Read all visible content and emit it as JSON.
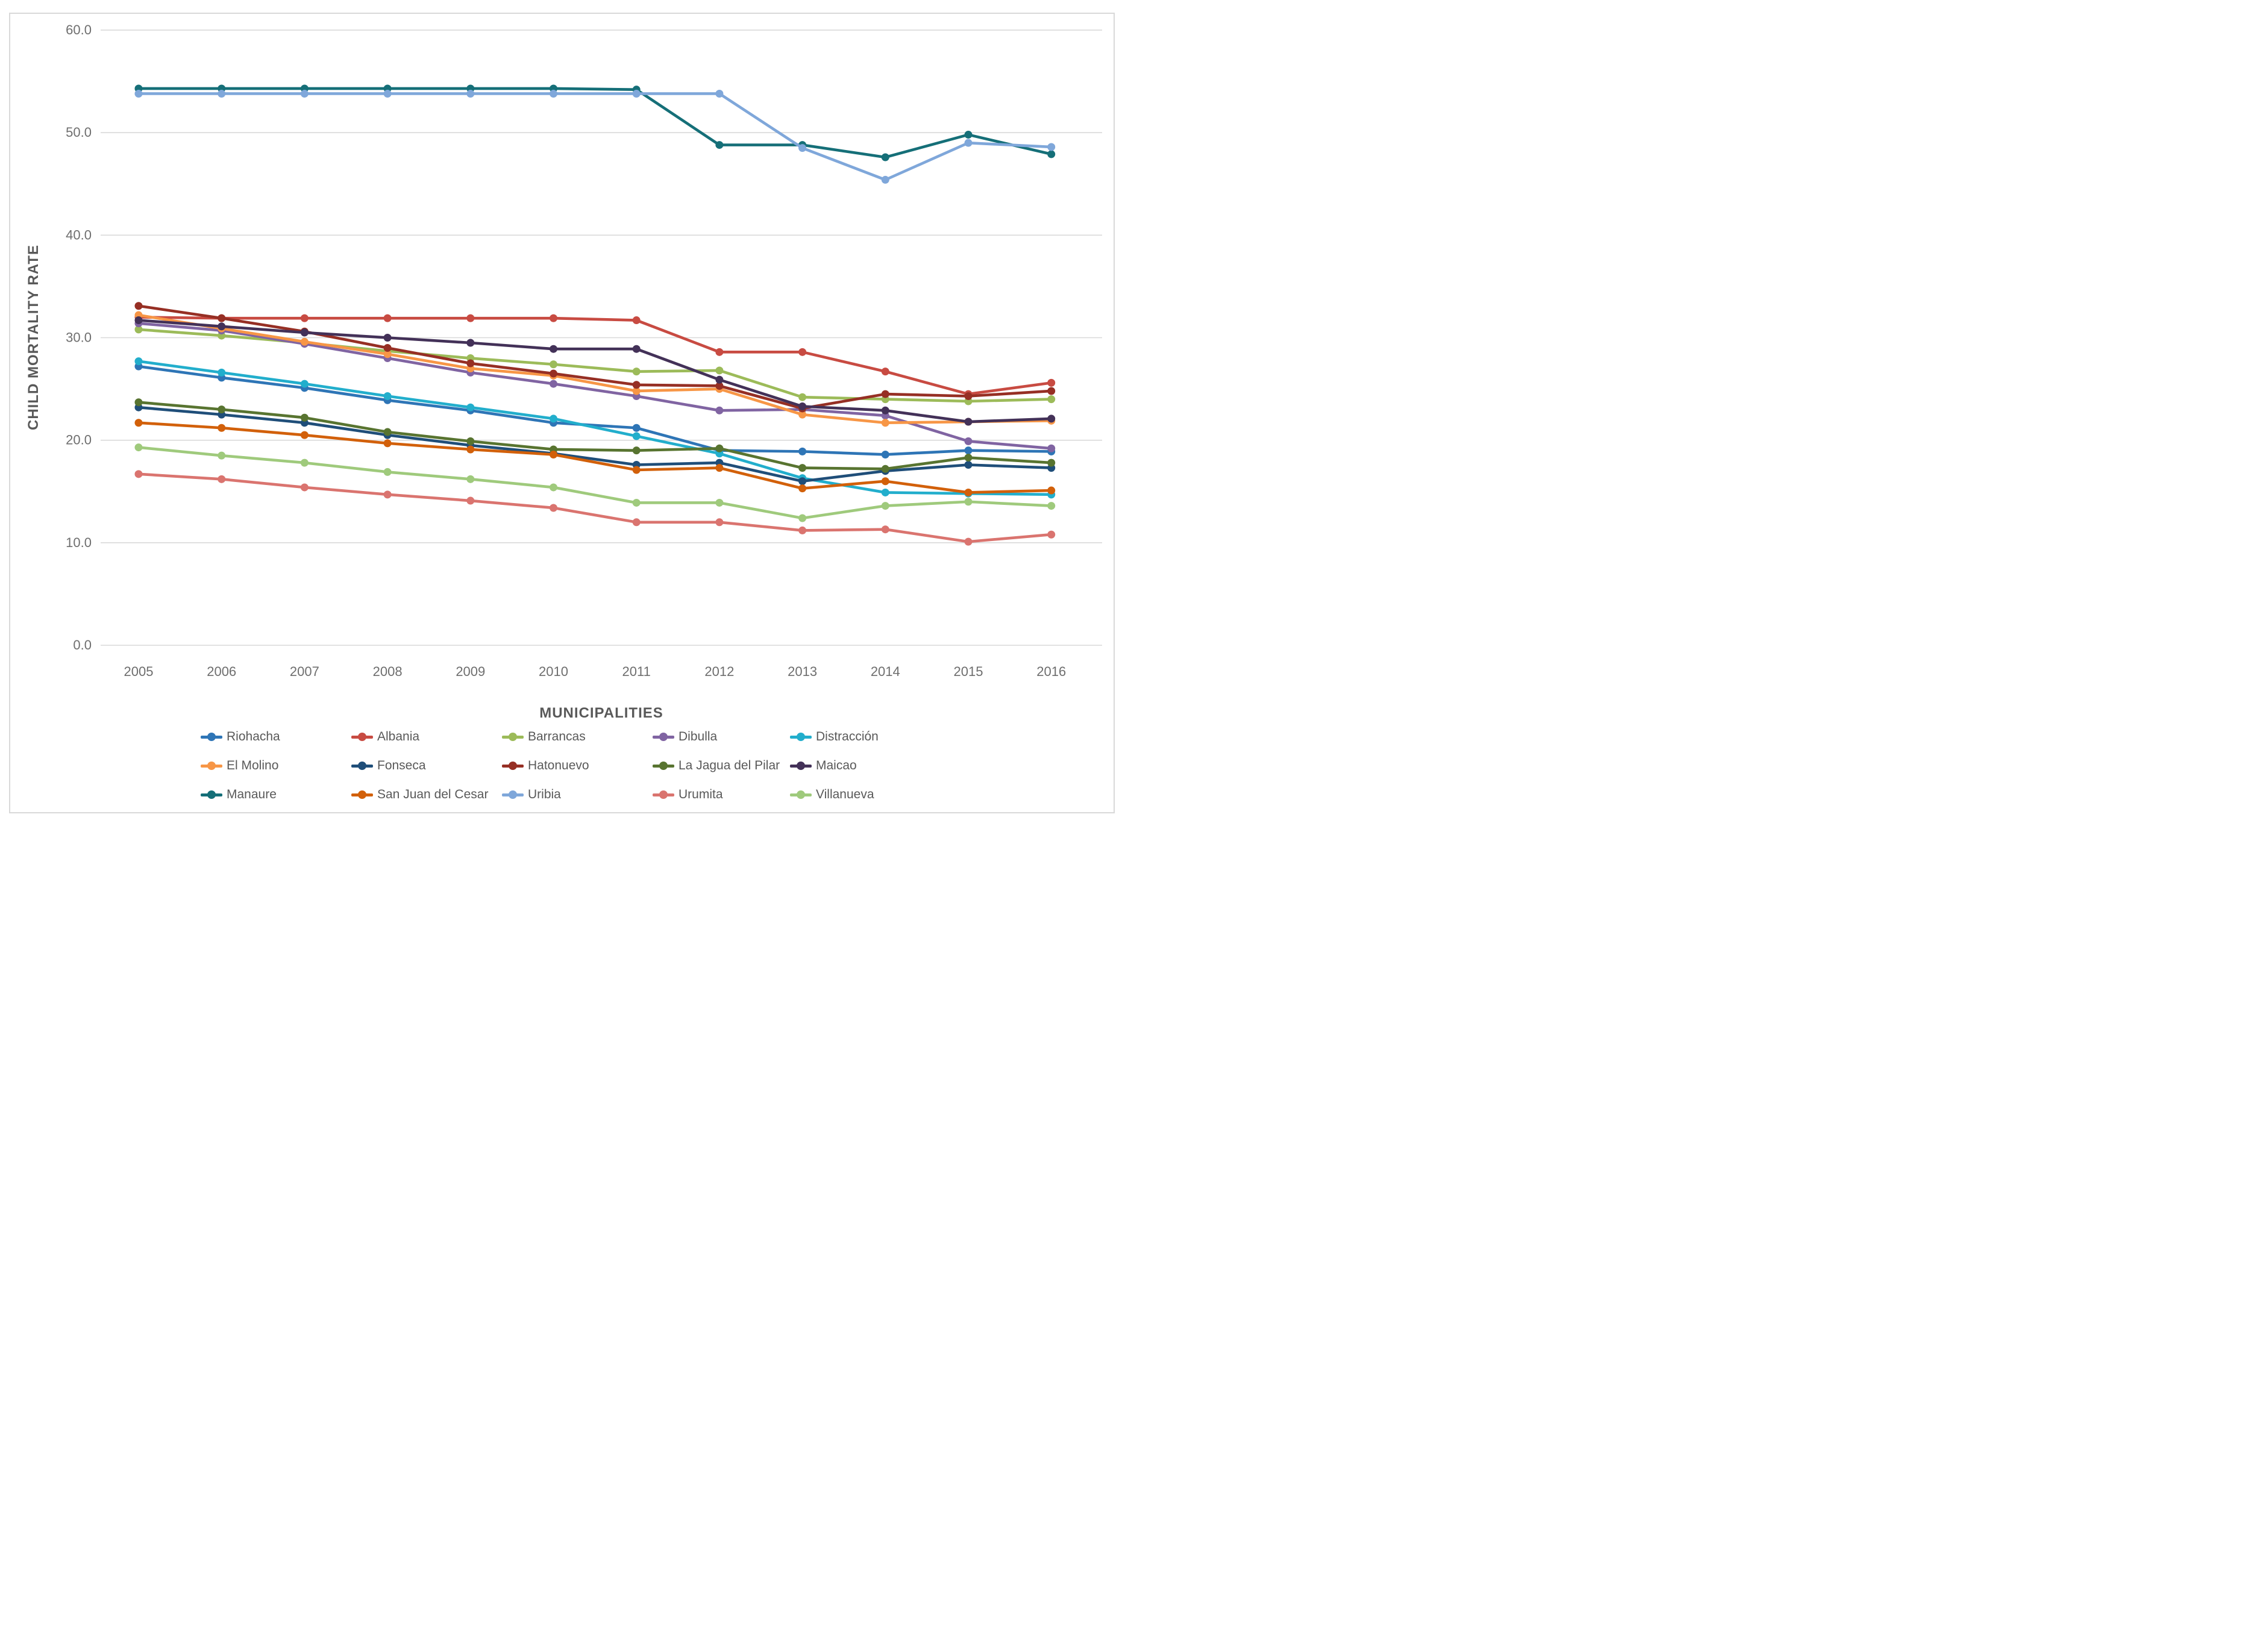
{
  "chart_data": {
    "type": "line",
    "title": "",
    "xlabel": "MUNICIPALITIES",
    "ylabel": "CHILD MORTALITY RATE",
    "categories": [
      "2005",
      "2006",
      "2007",
      "2008",
      "2009",
      "2010",
      "2011",
      "2012",
      "2013",
      "2014",
      "2015",
      "2016"
    ],
    "y_ticks": [
      "60.0",
      "50.0",
      "40.0",
      "30.0",
      "20.0",
      "10.0",
      "0.0"
    ],
    "ylim": [
      0,
      60
    ],
    "grid": "horizontal",
    "gridline_color": "#d9d9d9",
    "axis_text_color": "#6e6e6e",
    "title_text_color": "#595959",
    "legend_position": "bottom",
    "legend_columns": 5,
    "series": [
      {
        "name": "Riohacha",
        "color": "#2E75B6",
        "values": [
          27.2,
          26.1,
          25.1,
          23.9,
          22.9,
          21.7,
          21.2,
          19.0,
          18.9,
          18.6,
          19.0,
          18.9
        ]
      },
      {
        "name": "Albania",
        "color": "#C84B42",
        "values": [
          32.0,
          31.9,
          31.9,
          31.9,
          31.9,
          31.9,
          31.7,
          28.6,
          28.6,
          26.7,
          24.5,
          25.6
        ]
      },
      {
        "name": "Barrancas",
        "color": "#9CBB59",
        "values": [
          30.8,
          30.2,
          29.5,
          28.7,
          28.0,
          27.4,
          26.7,
          26.8,
          24.2,
          24.0,
          23.8,
          24.0
        ]
      },
      {
        "name": "Dibulla",
        "color": "#8064A2",
        "values": [
          31.4,
          30.7,
          29.4,
          28.0,
          26.6,
          25.5,
          24.3,
          22.9,
          23.0,
          22.4,
          19.9,
          19.2
        ]
      },
      {
        "name": "Distracción",
        "color": "#22AECC",
        "values": [
          27.7,
          26.6,
          25.5,
          24.3,
          23.2,
          22.1,
          20.4,
          18.7,
          16.3,
          14.9,
          14.8,
          14.7
        ]
      },
      {
        "name": "El Molino",
        "color": "#F79646",
        "values": [
          32.2,
          30.9,
          29.6,
          28.4,
          27.0,
          26.3,
          24.8,
          25.0,
          22.5,
          21.7,
          21.8,
          21.9
        ]
      },
      {
        "name": "Fonseca",
        "color": "#1F4E79",
        "values": [
          23.2,
          22.5,
          21.7,
          20.5,
          19.5,
          18.7,
          17.6,
          17.8,
          16.0,
          17.0,
          17.6,
          17.3
        ]
      },
      {
        "name": "Hatonuevo",
        "color": "#962F24",
        "values": [
          33.1,
          31.9,
          30.6,
          29.0,
          27.5,
          26.5,
          25.4,
          25.3,
          23.1,
          24.5,
          24.3,
          24.8
        ]
      },
      {
        "name": "La Jagua del Pilar",
        "color": "#587430",
        "values": [
          23.7,
          23.0,
          22.2,
          20.8,
          19.9,
          19.1,
          19.0,
          19.2,
          17.3,
          17.2,
          18.3,
          17.8
        ]
      },
      {
        "name": "Maicao",
        "color": "#433158",
        "values": [
          31.7,
          31.1,
          30.5,
          30.0,
          29.5,
          28.9,
          28.9,
          25.9,
          23.3,
          22.9,
          21.8,
          22.1
        ]
      },
      {
        "name": "Manaure",
        "color": "#156F78",
        "values": [
          54.3,
          54.3,
          54.3,
          54.3,
          54.3,
          54.3,
          54.2,
          48.8,
          48.8,
          47.6,
          49.8,
          47.9
        ]
      },
      {
        "name": "San Juan del Cesar",
        "color": "#D2600A",
        "values": [
          21.7,
          21.2,
          20.5,
          19.7,
          19.1,
          18.6,
          17.1,
          17.3,
          15.3,
          16.0,
          14.9,
          15.1
        ]
      },
      {
        "name": "Uribia",
        "color": "#7FA7DA",
        "values": [
          53.8,
          53.8,
          53.8,
          53.8,
          53.8,
          53.8,
          53.8,
          53.8,
          48.5,
          45.4,
          49.0,
          48.6
        ]
      },
      {
        "name": "Urumita",
        "color": "#DA746F",
        "values": [
          16.7,
          16.2,
          15.4,
          14.7,
          14.1,
          13.4,
          12.0,
          12.0,
          11.2,
          11.3,
          10.1,
          10.8
        ]
      },
      {
        "name": "Villanueva",
        "color": "#9FCA7C",
        "values": [
          19.3,
          18.5,
          17.8,
          16.9,
          16.2,
          15.4,
          13.9,
          13.9,
          12.4,
          13.6,
          14.0,
          13.6
        ]
      }
    ]
  }
}
